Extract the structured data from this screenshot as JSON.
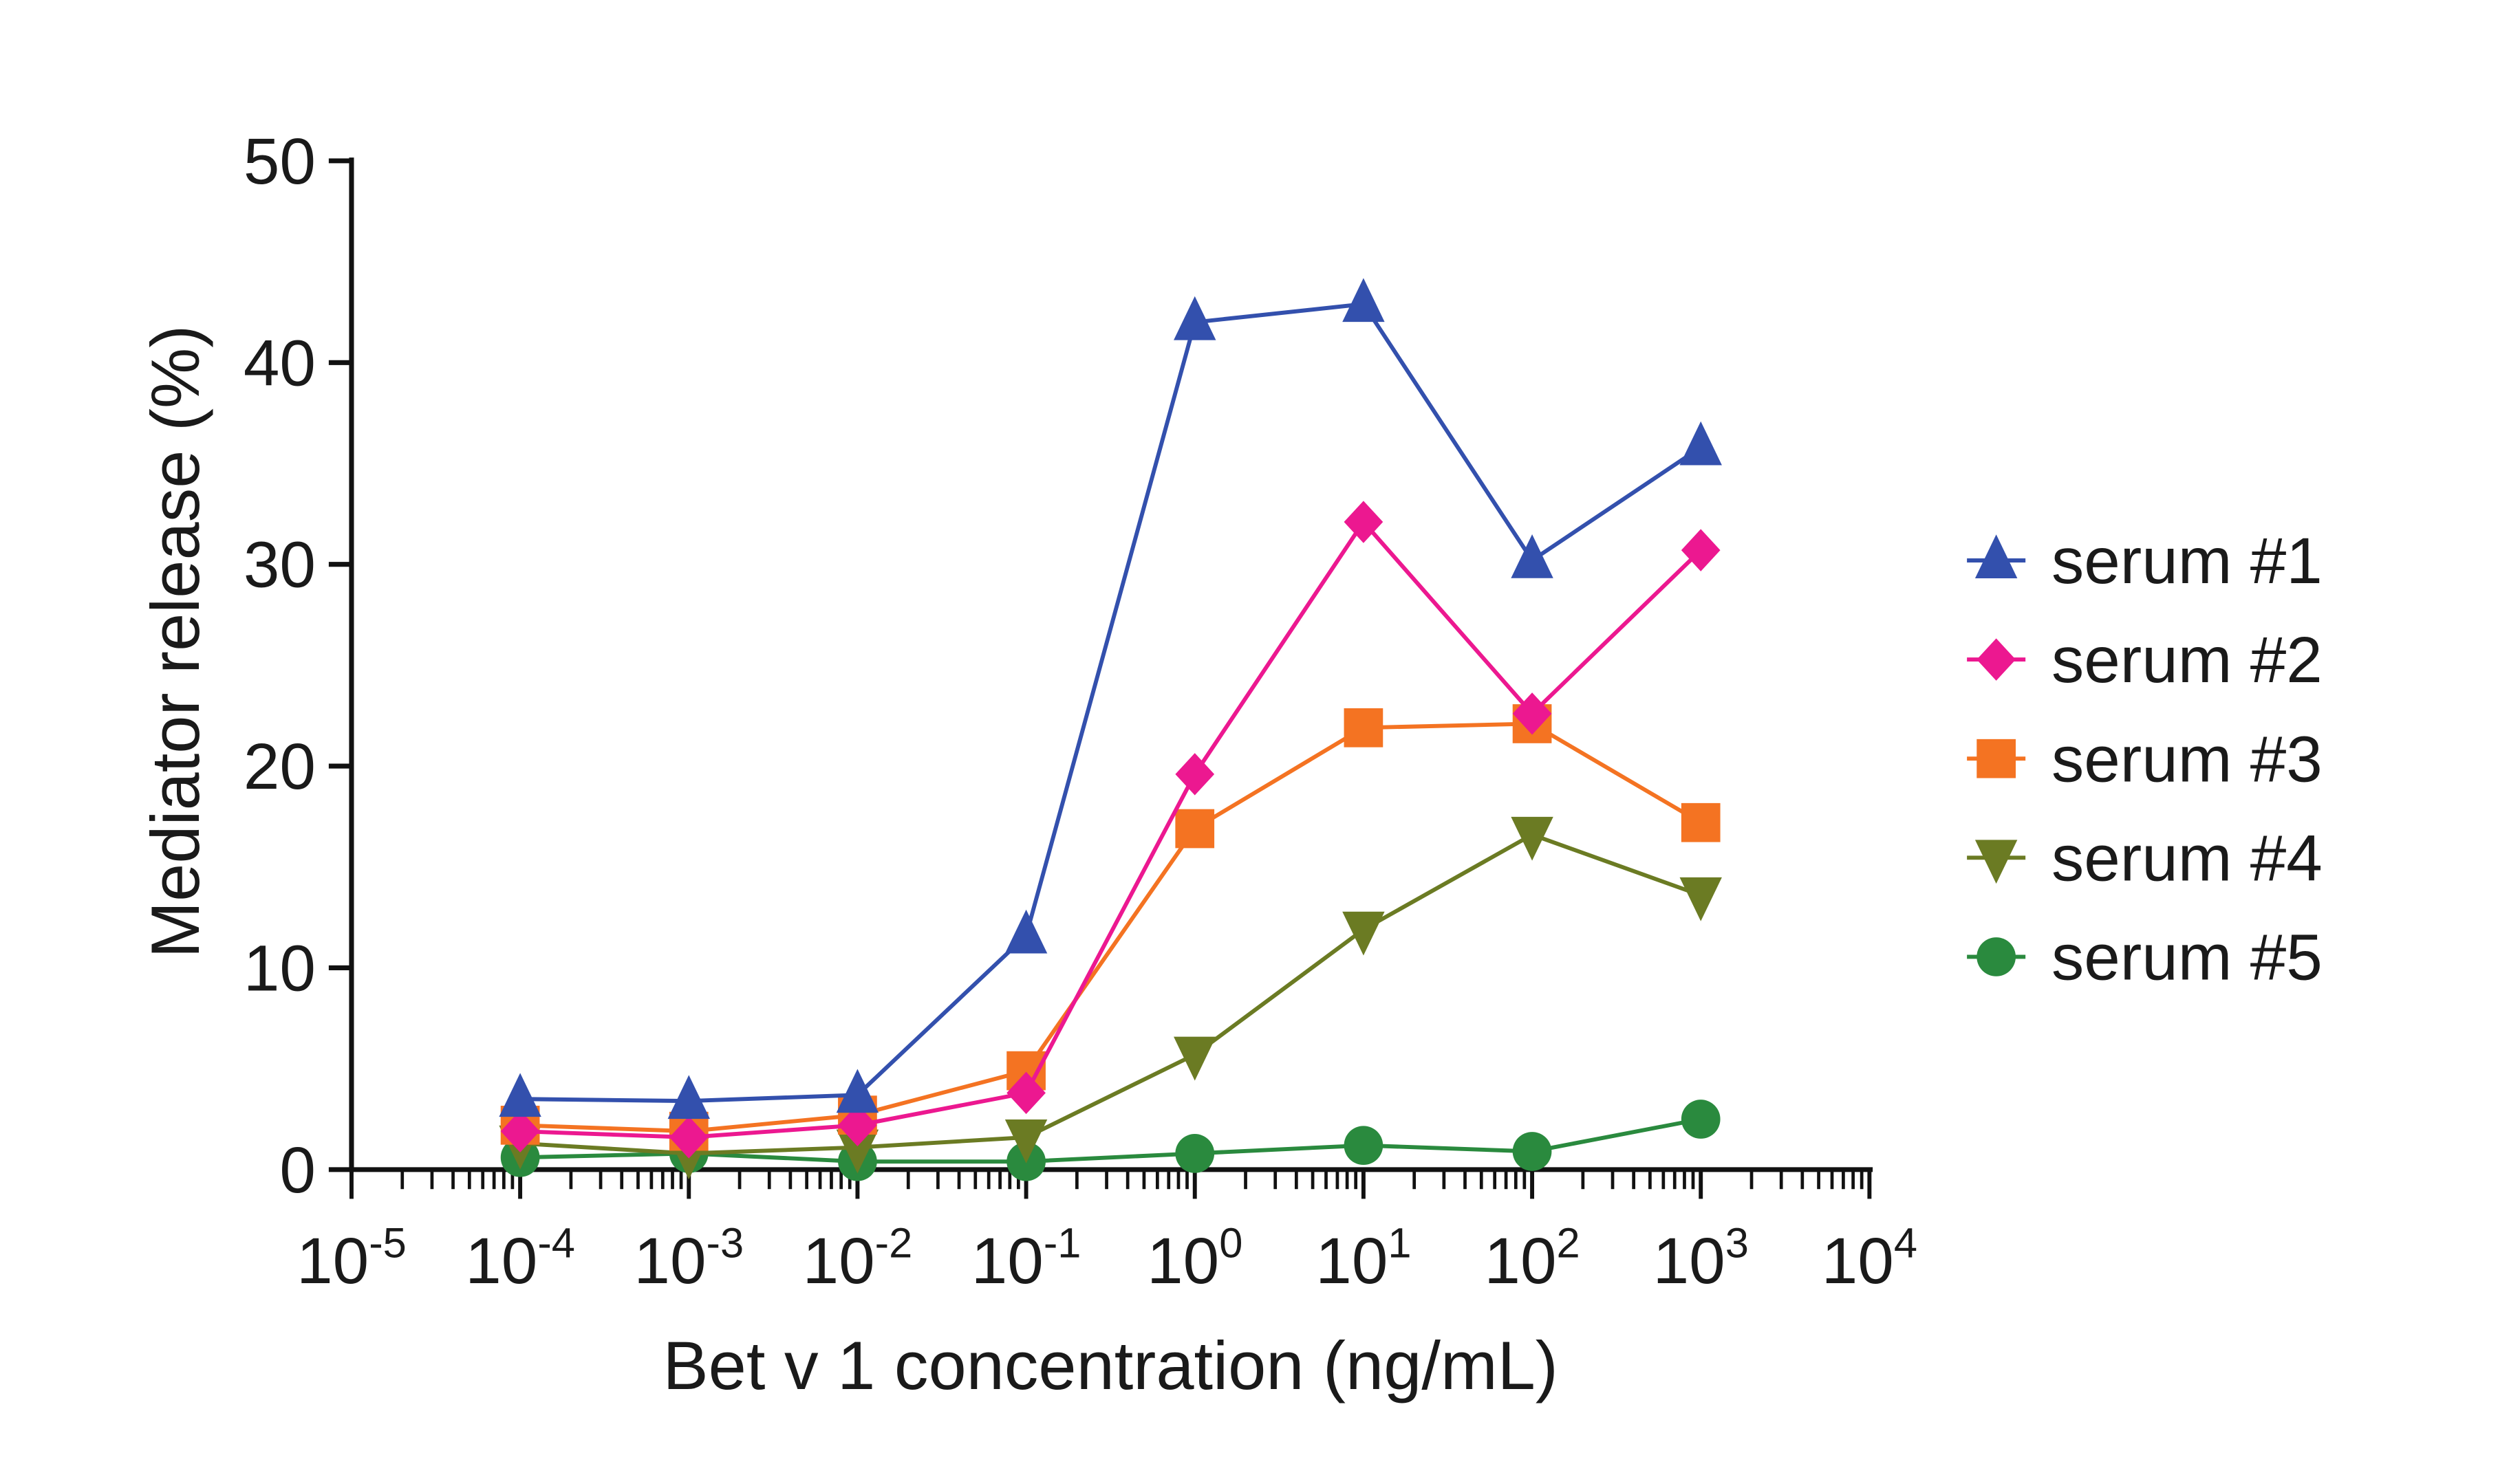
{
  "chart_data": {
    "type": "line",
    "title": "",
    "xlabel": "Bet v 1 concentration (ng/mL)",
    "ylabel": "Mediator release (%)",
    "xscale": "log",
    "xlim": [
      1e-05,
      10000.0
    ],
    "ylim": [
      0,
      50
    ],
    "y_ticks": [
      0,
      10,
      20,
      30,
      40,
      50
    ],
    "x_tick_labels": [
      {
        "base": "10",
        "exp": "-5"
      },
      {
        "base": "10",
        "exp": "-4"
      },
      {
        "base": "10",
        "exp": "-3"
      },
      {
        "base": "10",
        "exp": "-2"
      },
      {
        "base": "10",
        "exp": "-1"
      },
      {
        "base": "10",
        "exp": "0"
      },
      {
        "base": "10",
        "exp": "1"
      },
      {
        "base": "10",
        "exp": "2"
      },
      {
        "base": "10",
        "exp": "3"
      },
      {
        "base": "10",
        "exp": "4"
      }
    ],
    "x": [
      0.0001,
      0.001,
      0.01,
      0.1,
      1,
      10,
      100,
      1000
    ],
    "grid": false,
    "legend_position": "right",
    "series": [
      {
        "name": "serum #1",
        "marker": "triangle-up",
        "color": "#3350ad",
        "values": [
          3.5,
          3.4,
          3.7,
          11.6,
          42.0,
          42.9,
          30.2,
          35.8
        ]
      },
      {
        "name": "serum #2",
        "marker": "diamond",
        "color": "#ec1890",
        "values": [
          1.9,
          1.6,
          2.2,
          3.8,
          19.6,
          32.1,
          22.6,
          30.7
        ]
      },
      {
        "name": "serum #3",
        "marker": "square",
        "color": "#f47322",
        "values": [
          2.2,
          1.9,
          2.7,
          4.9,
          16.9,
          21.9,
          22.1,
          17.2
        ]
      },
      {
        "name": "serum #4",
        "marker": "triangle-down",
        "color": "#6b7b23",
        "values": [
          1.3,
          0.8,
          1.1,
          1.6,
          5.7,
          11.9,
          16.6,
          13.6
        ]
      },
      {
        "name": "serum #5",
        "marker": "circle",
        "color": "#2a8a3e",
        "values": [
          0.6,
          0.8,
          0.4,
          0.4,
          0.8,
          1.2,
          0.9,
          2.5
        ]
      }
    ]
  }
}
